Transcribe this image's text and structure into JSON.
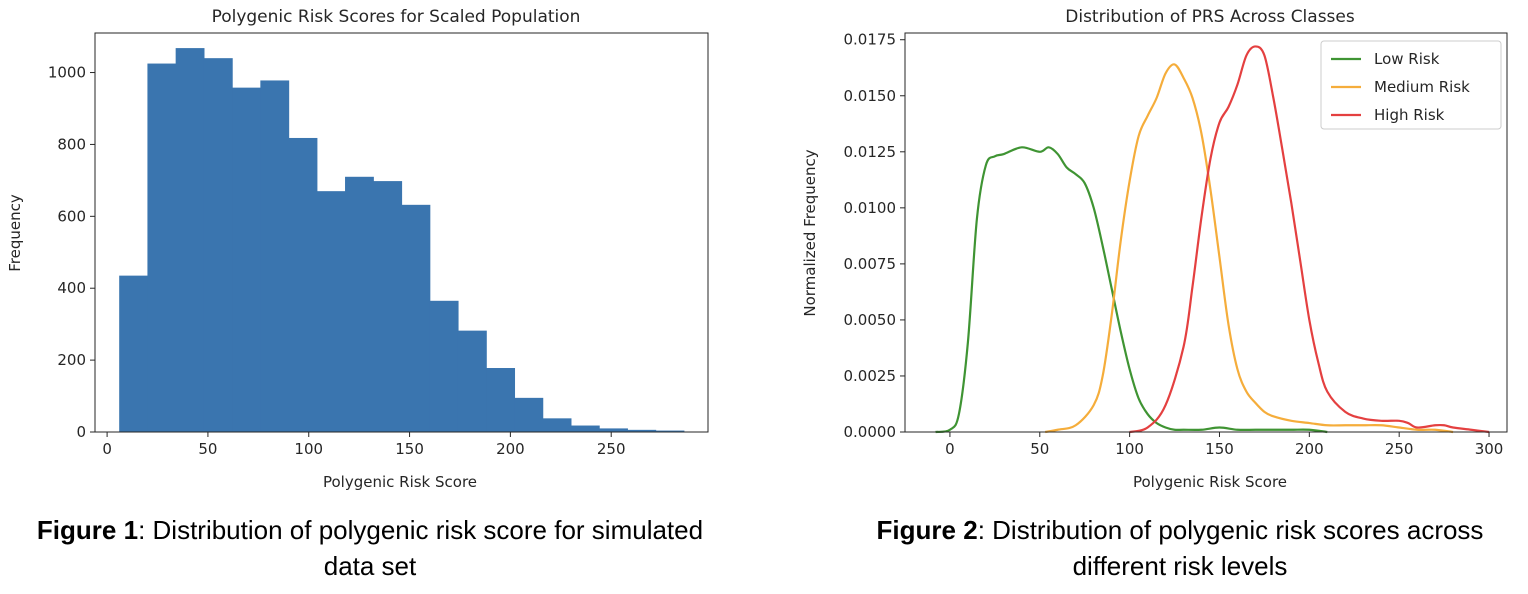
{
  "figure1": {
    "caption_bold": "Figure 1",
    "caption_rest": ": Distribution of polygenic risk score for simulated data set",
    "chart_data": {
      "type": "bar",
      "title": "Polygenic Risk Scores for Scaled Population",
      "xlabel": "Polygenic Risk Score",
      "ylabel": "Frequency",
      "bin_edges": [
        6,
        20,
        34,
        48,
        62,
        76,
        90,
        104,
        118,
        132,
        146,
        160,
        174,
        188,
        202,
        216,
        230,
        244,
        258,
        272,
        286
      ],
      "values": [
        435,
        1025,
        1068,
        1040,
        958,
        978,
        818,
        670,
        710,
        698,
        632,
        365,
        282,
        178,
        95,
        38,
        18,
        10,
        6,
        4
      ],
      "xlim": [
        -6,
        298
      ],
      "ylim": [
        0,
        1110
      ],
      "xticks": [
        0,
        50,
        100,
        150,
        200,
        250
      ],
      "yticks": [
        0,
        200,
        400,
        600,
        800,
        1000
      ],
      "bar_color": "#3a75af"
    }
  },
  "figure2": {
    "caption_bold": "Figure 2",
    "caption_rest": ": Distribution of polygenic risk scores across different risk levels",
    "chart_data": {
      "type": "line",
      "title": "Distribution of PRS Across Classes",
      "xlabel": "Polygenic Risk Score",
      "ylabel": "Normalized Frequency",
      "xlim": [
        -25,
        310
      ],
      "ylim": [
        0,
        0.0178
      ],
      "xticks": [
        0,
        50,
        100,
        150,
        200,
        250,
        300
      ],
      "yticks": [
        "0.0000",
        "0.0025",
        "0.0050",
        "0.0075",
        "0.0100",
        "0.0125",
        "0.0150",
        "0.0175"
      ],
      "legend_position": "top-right",
      "series": [
        {
          "name": "Low Risk",
          "color": "#3f9433",
          "x": [
            -8,
            0,
            5,
            10,
            15,
            20,
            25,
            30,
            40,
            50,
            55,
            60,
            65,
            70,
            75,
            80,
            85,
            90,
            95,
            100,
            105,
            110,
            115,
            120,
            125,
            130,
            140,
            150,
            160,
            170,
            180,
            190,
            200,
            210
          ],
          "y": [
            0,
            0.0001,
            0.0008,
            0.004,
            0.0095,
            0.0119,
            0.0123,
            0.0124,
            0.0127,
            0.0125,
            0.0127,
            0.0124,
            0.0118,
            0.0115,
            0.0111,
            0.01,
            0.0083,
            0.0064,
            0.0045,
            0.0028,
            0.0015,
            0.0008,
            0.0004,
            0.0002,
            0.0001,
            0.0001,
            0.0001,
            0.0002,
            0.0001,
            0.0001,
            0.0001,
            0.0001,
            0.0001,
            0
          ]
        },
        {
          "name": "Medium Risk",
          "color": "#f5ad3b",
          "x": [
            53,
            60,
            70,
            80,
            85,
            90,
            95,
            100,
            105,
            110,
            115,
            120,
            125,
            130,
            135,
            140,
            145,
            150,
            155,
            160,
            165,
            170,
            175,
            180,
            190,
            200,
            210,
            220,
            230,
            240,
            250,
            260,
            270,
            280
          ],
          "y": [
            0,
            0.0001,
            0.0003,
            0.0012,
            0.0025,
            0.0052,
            0.0085,
            0.0112,
            0.0132,
            0.0141,
            0.0149,
            0.016,
            0.0164,
            0.0158,
            0.0149,
            0.0133,
            0.0108,
            0.0078,
            0.0048,
            0.0028,
            0.0018,
            0.0013,
            0.0009,
            0.0007,
            0.0005,
            0.0004,
            0.0003,
            0.0003,
            0.0003,
            0.0003,
            0.0002,
            0.0001,
            0.0001,
            0
          ]
        },
        {
          "name": "High Risk",
          "color": "#e44040",
          "x": [
            100,
            110,
            120,
            130,
            135,
            140,
            145,
            150,
            155,
            160,
            165,
            170,
            175,
            180,
            185,
            190,
            195,
            200,
            205,
            210,
            220,
            230,
            240,
            250,
            255,
            260,
            270,
            275,
            280,
            290,
            300
          ],
          "y": [
            0,
            0.0002,
            0.0012,
            0.0038,
            0.0065,
            0.0096,
            0.0122,
            0.0138,
            0.0145,
            0.0155,
            0.0168,
            0.0172,
            0.0168,
            0.0149,
            0.0126,
            0.0102,
            0.0076,
            0.005,
            0.0031,
            0.0018,
            0.0009,
            0.0006,
            0.0005,
            0.0005,
            0.0004,
            0.0002,
            0.0003,
            0.0003,
            0.0002,
            0.0001,
            0
          ]
        }
      ]
    }
  }
}
